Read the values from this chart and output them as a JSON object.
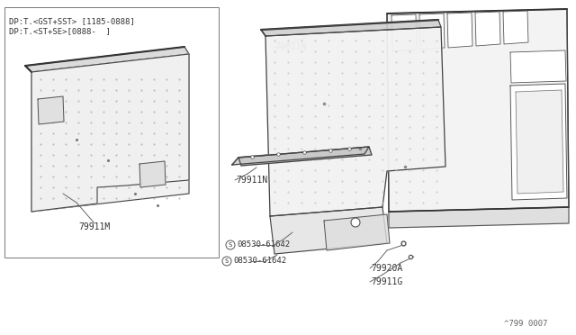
{
  "bg_color": "#ffffff",
  "line_color": "#555555",
  "text_color": "#333333",
  "diagram_ref": "^799 0007",
  "box_label1": "DP:T.<GST+SST> [1185-0888]",
  "box_label2": "DP:T.<ST+SE>[0888-  ]",
  "font_size_label": 7.0,
  "font_size_header": 6.5
}
